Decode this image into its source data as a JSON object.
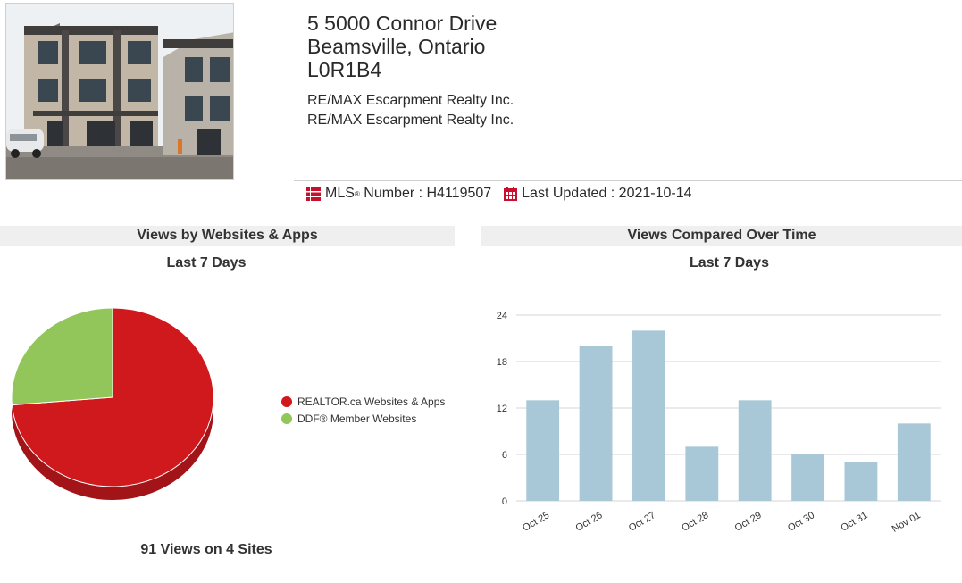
{
  "listing": {
    "address_line1": "5 5000 Connor Drive",
    "address_line2": "Beamsville, Ontario",
    "postal_code": "L0R1B4",
    "brokerage_1": "RE/MAX Escarpment Realty Inc.",
    "brokerage_2": "RE/MAX Escarpment Realty Inc.",
    "mls_label": "MLS",
    "mls_reg": "®",
    "mls_label_suffix": " Number : ",
    "mls_number": "H4119507",
    "updated_label": "Last Updated : ",
    "updated_date": "2021-10-14",
    "icons": [
      "list-icon",
      "calendar-icon"
    ],
    "accent_color": "#c8102e"
  },
  "chart_data": [
    {
      "type": "pie",
      "title": "Views by Websites & Apps",
      "subtitle": "Last 7 Days",
      "slices": [
        {
          "label": "REALTOR.ca Websites & Apps",
          "value": 67,
          "color": "#d0191d"
        },
        {
          "label": "DDF® Member Websites",
          "value": 24,
          "color": "#92c65b"
        }
      ],
      "legend_position": "right",
      "footer": "91 Views on 4 Sites"
    },
    {
      "type": "bar",
      "title": "Views Compared Over Time",
      "subtitle": "Last 7 Days",
      "categories": [
        "Oct 25",
        "Oct 26",
        "Oct 27",
        "Oct 28",
        "Oct 29",
        "Oct 30",
        "Oct 31",
        "Nov 01"
      ],
      "values": [
        13,
        20,
        22,
        7,
        13,
        6,
        5,
        10
      ],
      "yticks": [
        0,
        6,
        12,
        18,
        24
      ],
      "ylim": [
        0,
        24
      ],
      "grid": true,
      "bar_color": "#a9c8d7"
    }
  ]
}
